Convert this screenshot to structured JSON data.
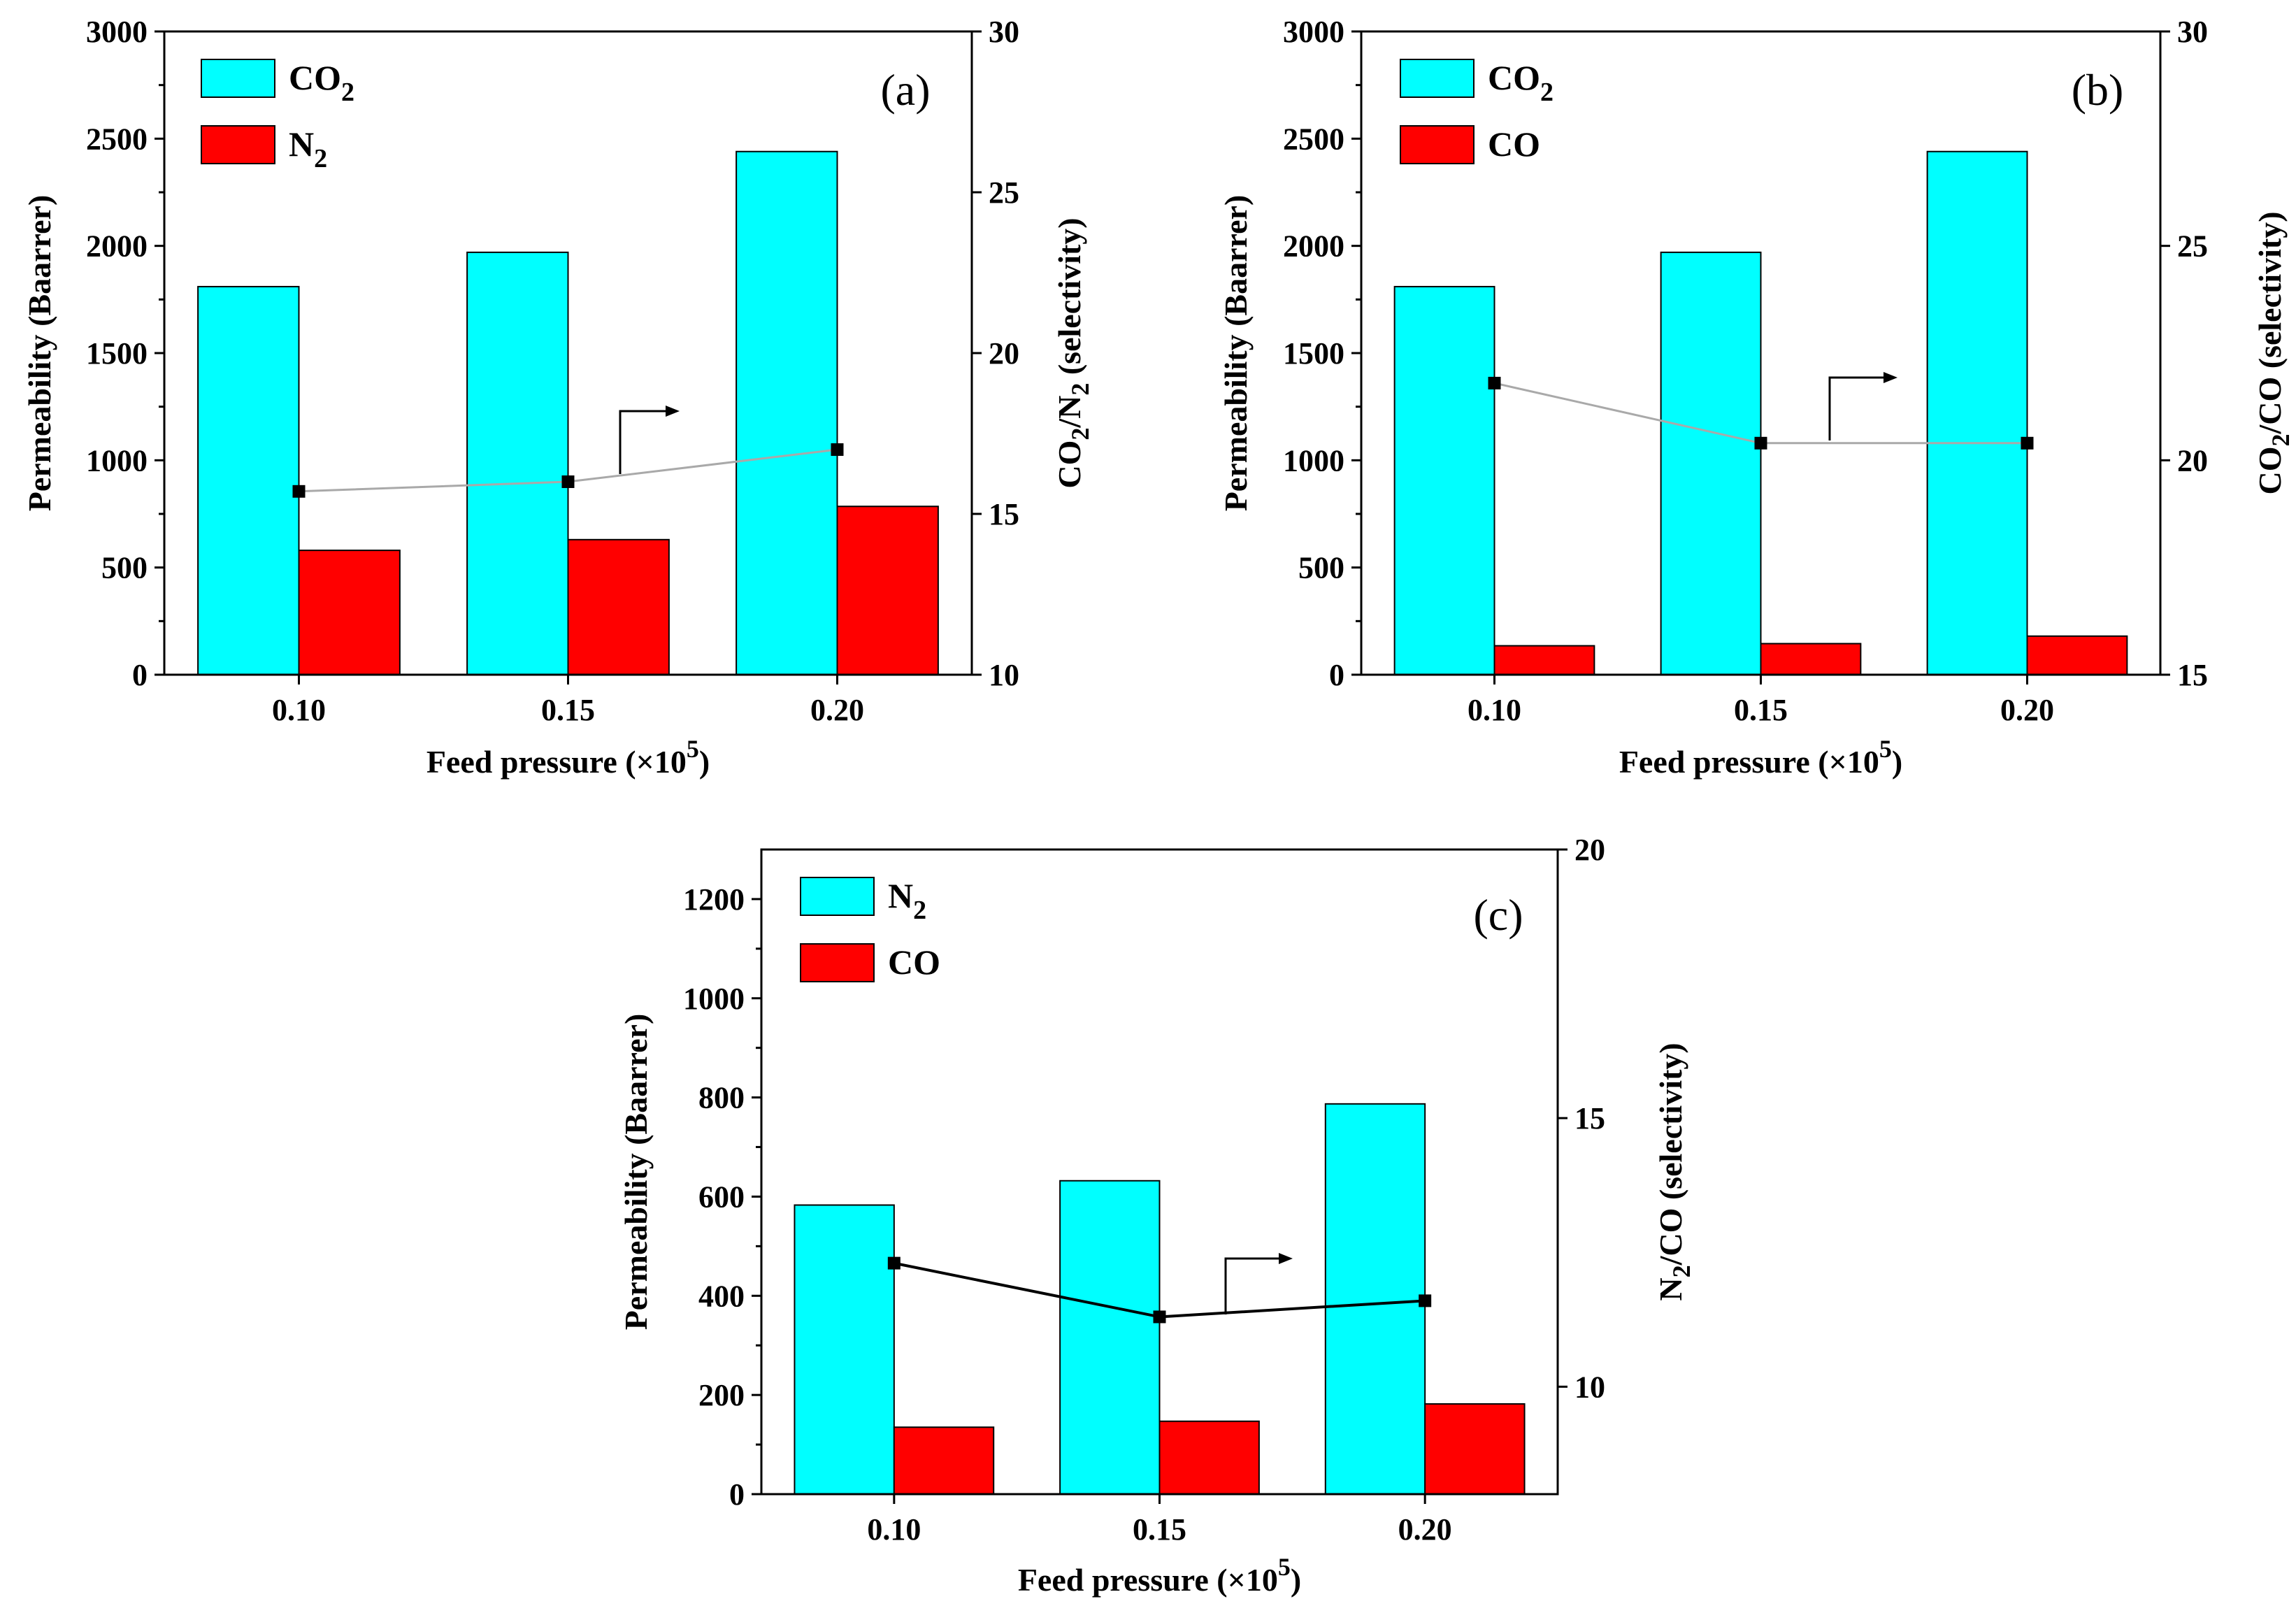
{
  "colors": {
    "series_a": "#00FFFF",
    "series_b": "#FF0000",
    "selectivity_line_ab": "#A9A9A9",
    "selectivity_line_c": "#000000",
    "marker": "#000000"
  },
  "chart_data": [
    {
      "type": "bar",
      "panel_label": "(a)",
      "categories": [
        "0.10",
        "0.15",
        "0.20"
      ],
      "series": [
        {
          "name": "CO2",
          "label_main": "CO",
          "label_sub": "2",
          "values": [
            1810,
            1970,
            2440
          ]
        },
        {
          "name": "N2",
          "label_main": "N",
          "label_sub": "2",
          "values": [
            580,
            630,
            785
          ]
        }
      ],
      "secondary_series": {
        "name": "CO2/N2 selectivity",
        "axis": "right",
        "values": [
          15.7,
          16.0,
          17.0
        ]
      },
      "xlabel": {
        "main": "Feed pressure (×10",
        "sup": "5",
        "tail": ")"
      },
      "ylabel": "Permeability (Baarrer)",
      "ylabel_right": {
        "pre": "CO",
        "sub1": "2",
        "mid": "/N",
        "sub2": "2",
        "post": " (selectivity)"
      },
      "ylim": [
        0,
        3000
      ],
      "yticks": [
        "0",
        "500",
        "1000",
        "1500",
        "2000",
        "2500",
        "3000"
      ],
      "ylim_right": [
        10,
        30
      ],
      "yticks_right": [
        "10",
        "15",
        "20",
        "25",
        "30"
      ],
      "legend_position": "top-left"
    },
    {
      "type": "bar",
      "panel_label": "(b)",
      "categories": [
        "0.10",
        "0.15",
        "0.20"
      ],
      "series": [
        {
          "name": "CO2",
          "label_main": "CO",
          "label_sub": "2",
          "values": [
            1810,
            1970,
            2440
          ]
        },
        {
          "name": "CO",
          "label_main": "CO",
          "label_sub": "",
          "values": [
            135,
            145,
            180
          ]
        }
      ],
      "secondary_series": {
        "name": "CO2/CO selectivity",
        "axis": "right",
        "values": [
          21.8,
          20.4,
          20.4
        ]
      },
      "xlabel": {
        "main": "Feed pressure (×10",
        "sup": "5",
        "tail": ")"
      },
      "ylabel": "Permeability (Baarrer)",
      "ylabel_right": {
        "pre": "CO",
        "sub1": "2",
        "mid": "/CO",
        "sub2": "",
        "post": " (selectivity)"
      },
      "ylim": [
        0,
        3000
      ],
      "yticks": [
        "0",
        "500",
        "1000",
        "1500",
        "2000",
        "2500",
        "3000"
      ],
      "ylim_right": [
        15,
        30
      ],
      "yticks_right": [
        "15",
        "20",
        "25",
        "30"
      ],
      "legend_position": "top-left"
    },
    {
      "type": "bar",
      "panel_label": "(c)",
      "categories": [
        "0.10",
        "0.15",
        "0.20"
      ],
      "series": [
        {
          "name": "N2",
          "label_main": "N",
          "label_sub": "2",
          "values": [
            583,
            632,
            787
          ]
        },
        {
          "name": "CO",
          "label_main": "CO",
          "label_sub": "",
          "values": [
            135,
            147,
            182
          ]
        }
      ],
      "secondary_series": {
        "name": "N2/CO selectivity",
        "axis": "right",
        "values": [
          12.3,
          11.3,
          11.6
        ]
      },
      "xlabel": {
        "main": "Feed pressure (×10",
        "sup": "5",
        "tail": ")"
      },
      "ylabel": "Permeability (Baarrer)",
      "ylabel_right": {
        "pre": "N",
        "sub1": "2",
        "mid": "/CO",
        "sub2": "",
        "post": " (selectivity)"
      },
      "ylim": [
        0,
        1300
      ],
      "yticks": [
        "0",
        "200",
        "400",
        "600",
        "800",
        "1000",
        "1200"
      ],
      "ylim_right": [
        8,
        20
      ],
      "yticks_right": [
        "10",
        "15",
        "20"
      ],
      "legend_position": "top-left"
    }
  ]
}
